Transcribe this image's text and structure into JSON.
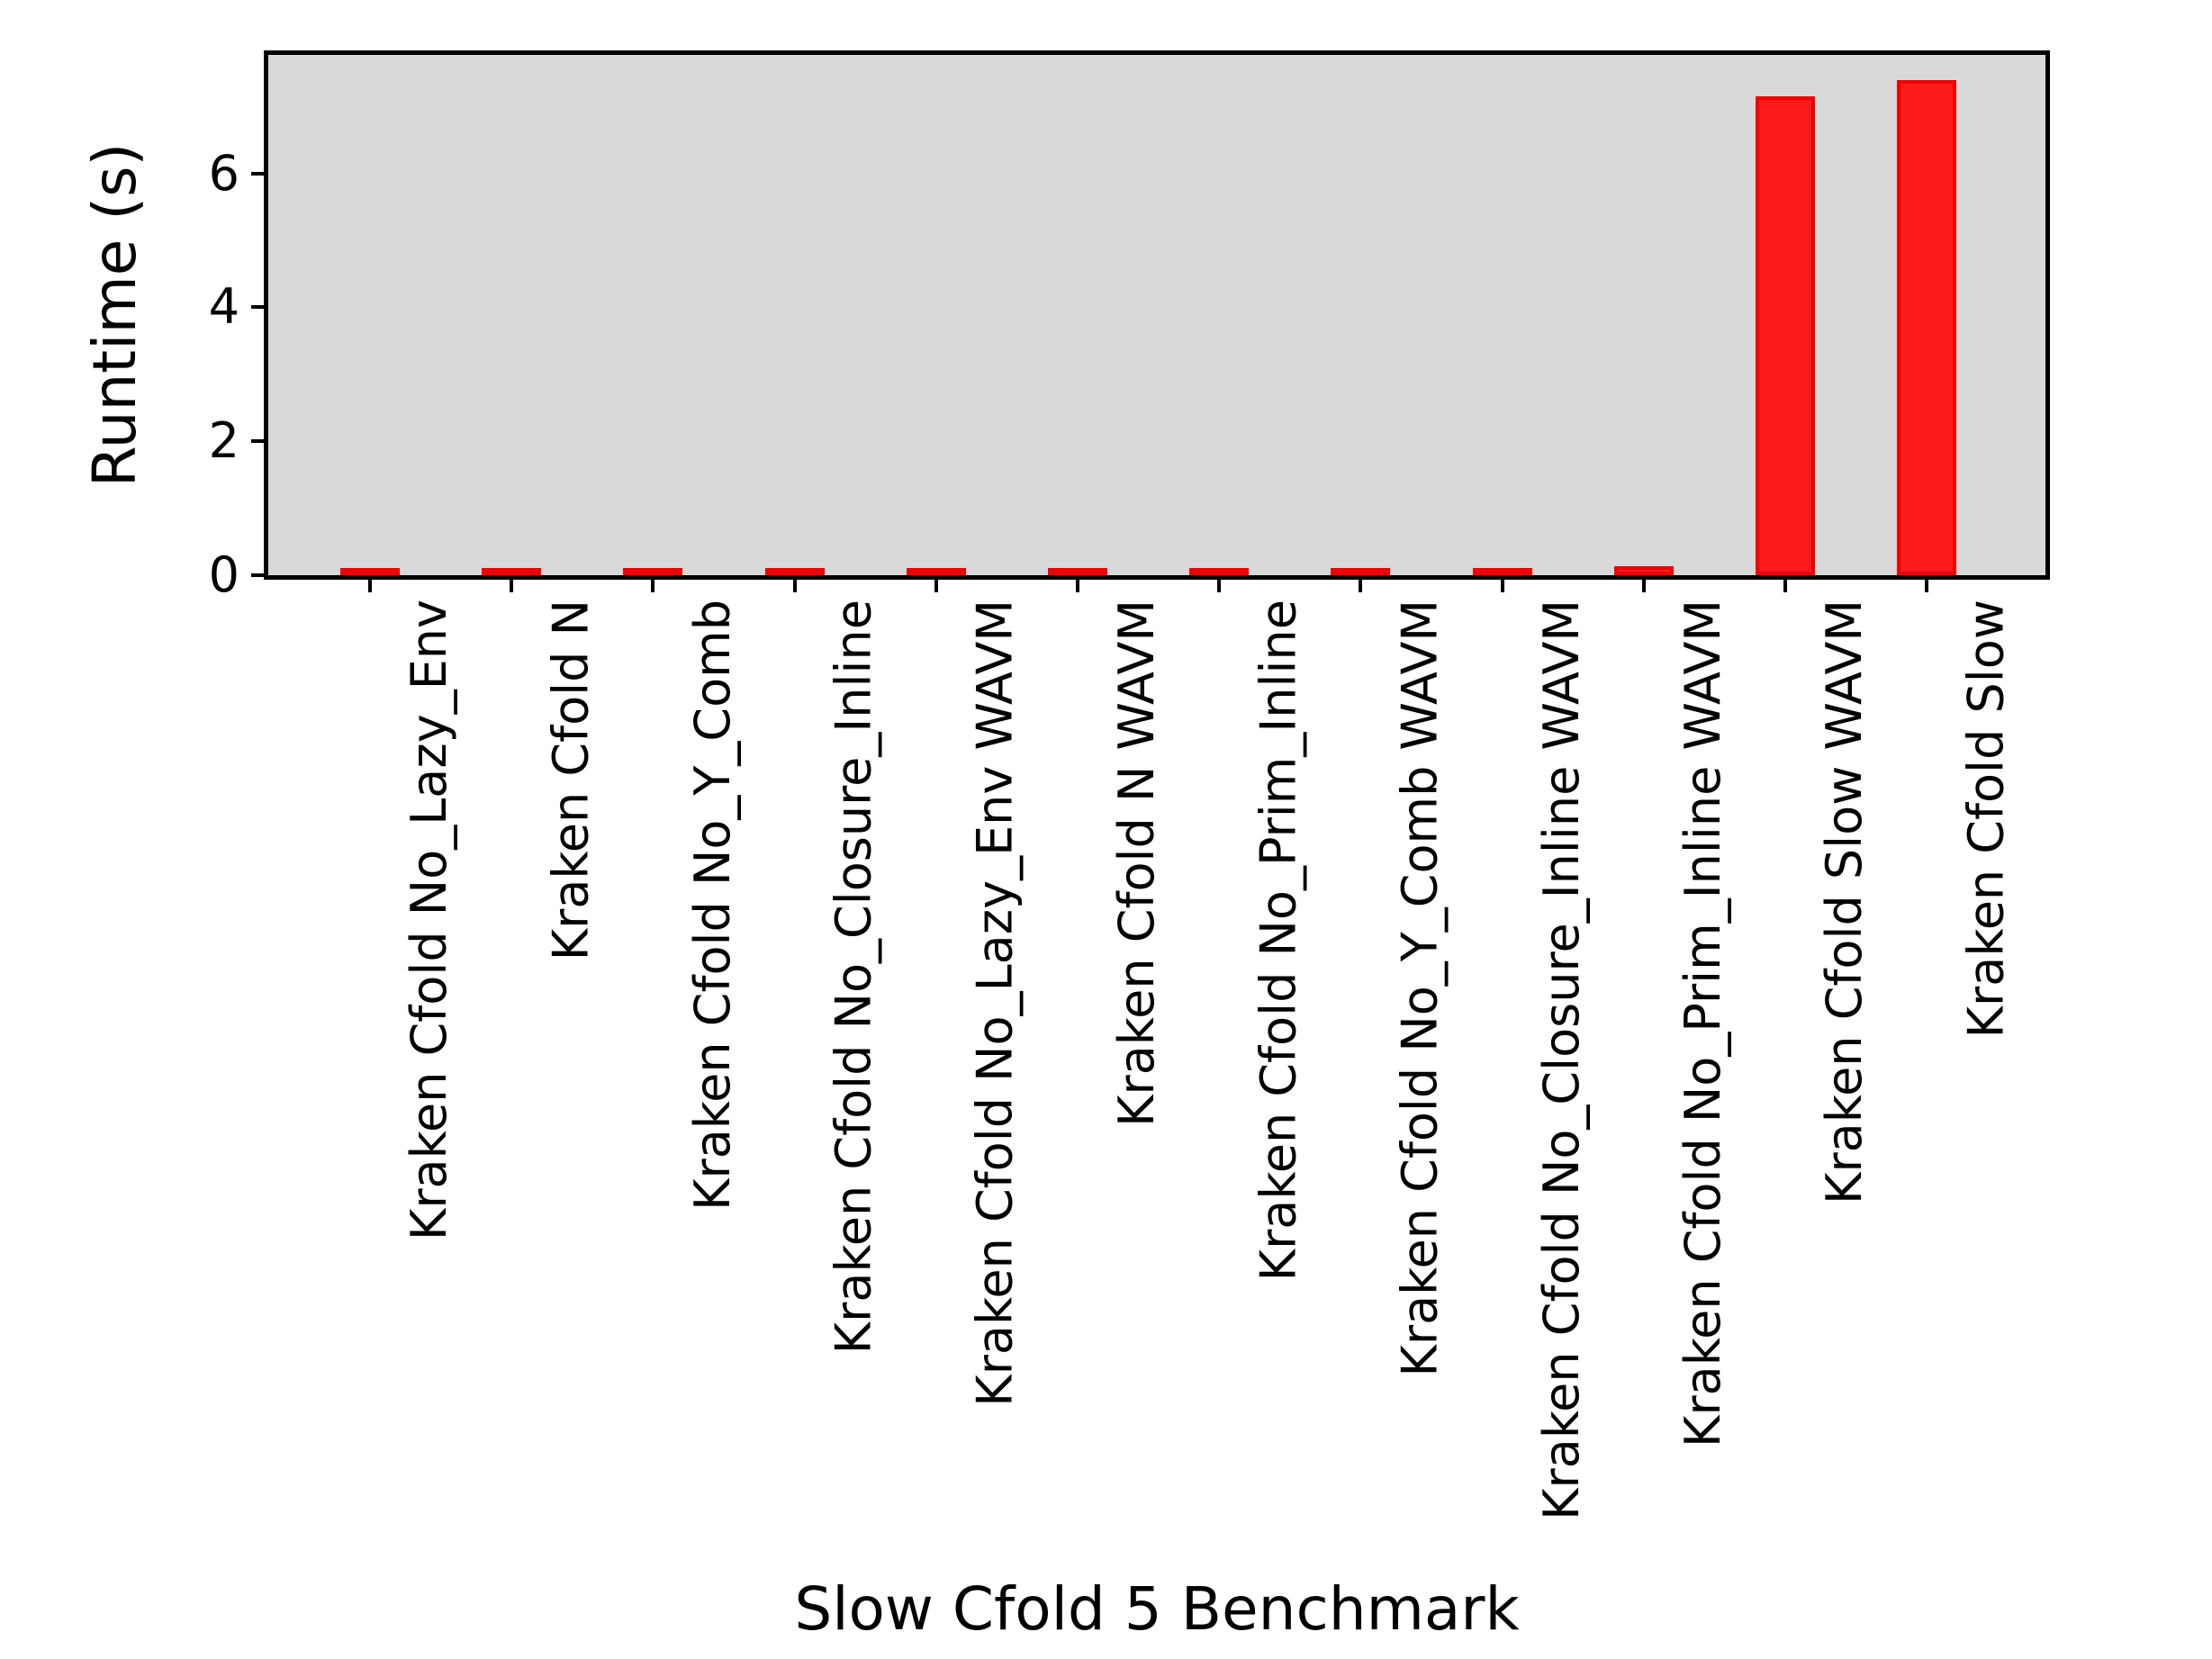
{
  "chart_data": {
    "type": "bar",
    "title": "",
    "xlabel": "Slow Cfold 5 Benchmark",
    "ylabel": "Runtime (s)",
    "categories": [
      "Kraken Cfold No_Lazy_Env",
      "Kraken Cfold N",
      "Kraken Cfold No_Y_Comb",
      "Kraken Cfold No_Closure_Inline",
      "Kraken Cfold No_Lazy_Env WAVM",
      "Kraken Cfold N WAVM",
      "Kraken Cfold No_Prim_Inline",
      "Kraken Cfold No_Y_Comb WAVM",
      "Kraken Cfold No_Closure_Inline WAVM",
      "Kraken Cfold No_Prim_Inline WAVM",
      "Kraken Cfold Slow WAVM",
      "Kraken Cfold Slow"
    ],
    "values": [
      0.06,
      0.06,
      0.05,
      0.07,
      0.07,
      0.07,
      0.08,
      0.08,
      0.09,
      0.13,
      7.15,
      7.4
    ],
    "yticks": [
      0,
      2,
      4,
      6
    ],
    "ylim": [
      0,
      7.77
    ],
    "grid": false,
    "legend": {
      "visible": true,
      "position": "upper right",
      "entries": []
    },
    "colors": {
      "bar_fill": "#fb1b1b",
      "bar_edge": "#f00000",
      "plot_background": "#d9d9d9",
      "figure_background": "#ffffff",
      "axis_line": "#000000",
      "legend_fill": "#fcfcfc",
      "legend_border": "#d4d4d4",
      "text": "#000000"
    }
  }
}
